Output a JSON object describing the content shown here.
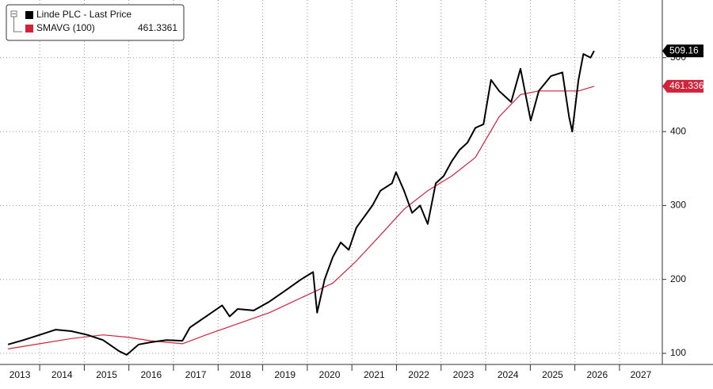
{
  "chart_data": {
    "type": "line",
    "series": [
      {
        "name": "Linde PLC - Last Price",
        "color": "#000000",
        "x": [
          2013.29,
          2013.64,
          2014.0,
          2014.36,
          2014.71,
          2015.07,
          2015.42,
          2015.78,
          2015.95,
          2016.22,
          2016.49,
          2016.84,
          2017.2,
          2017.37,
          2017.73,
          2018.09,
          2018.26,
          2018.44,
          2018.8,
          2019.15,
          2019.51,
          2019.86,
          2020.13,
          2020.22,
          2020.39,
          2020.57,
          2020.75,
          2020.93,
          2021.1,
          2021.28,
          2021.46,
          2021.64,
          2021.9,
          2021.99,
          2022.17,
          2022.35,
          2022.53,
          2022.7,
          2022.88,
          2023.06,
          2023.24,
          2023.41,
          2023.59,
          2023.77,
          2023.95,
          2024.12,
          2024.3,
          2024.57,
          2024.78,
          2025.01,
          2025.19,
          2025.46,
          2025.72,
          2025.87,
          2025.94,
          2026.08,
          2026.19,
          2026.35,
          2026.43
        ],
        "values": [
          112,
          118,
          125,
          132,
          130,
          125,
          118,
          103,
          98,
          112,
          115,
          118,
          117,
          135,
          150,
          165,
          150,
          160,
          158,
          170,
          185,
          200,
          210,
          155,
          200,
          230,
          250,
          240,
          270,
          285,
          300,
          320,
          330,
          345,
          320,
          290,
          300,
          275,
          330,
          340,
          360,
          375,
          385,
          405,
          410,
          470,
          455,
          440,
          485,
          415,
          455,
          475,
          480,
          420,
          400,
          470,
          505,
          500,
          509.16
        ]
      },
      {
        "name": "SMAVG (100)",
        "color": "#d1233a",
        "x": [
          2013.29,
          2014.0,
          2014.71,
          2015.42,
          2015.95,
          2016.49,
          2017.2,
          2017.73,
          2018.44,
          2019.15,
          2019.86,
          2020.57,
          2021.1,
          2021.64,
          2022.17,
          2022.7,
          2023.24,
          2023.77,
          2024.3,
          2024.78,
          2025.19,
          2025.72,
          2026.08,
          2026.43
        ],
        "values": [
          106,
          113,
          120,
          125,
          122,
          117,
          113,
          125,
          140,
          155,
          175,
          195,
          225,
          260,
          295,
          320,
          340,
          365,
          420,
          450,
          455,
          455,
          455,
          461.3361
        ]
      }
    ],
    "xlim": [
      2013.11,
      2027.96
    ],
    "xticks": [
      2013,
      2014,
      2015,
      2016,
      2017,
      2018,
      2019,
      2020,
      2021,
      2022,
      2023,
      2024,
      2025,
      2026,
      2027
    ],
    "ylim": [
      85,
      578
    ],
    "yticks": [
      100,
      200,
      300,
      400,
      500
    ],
    "grid": true
  }
}
